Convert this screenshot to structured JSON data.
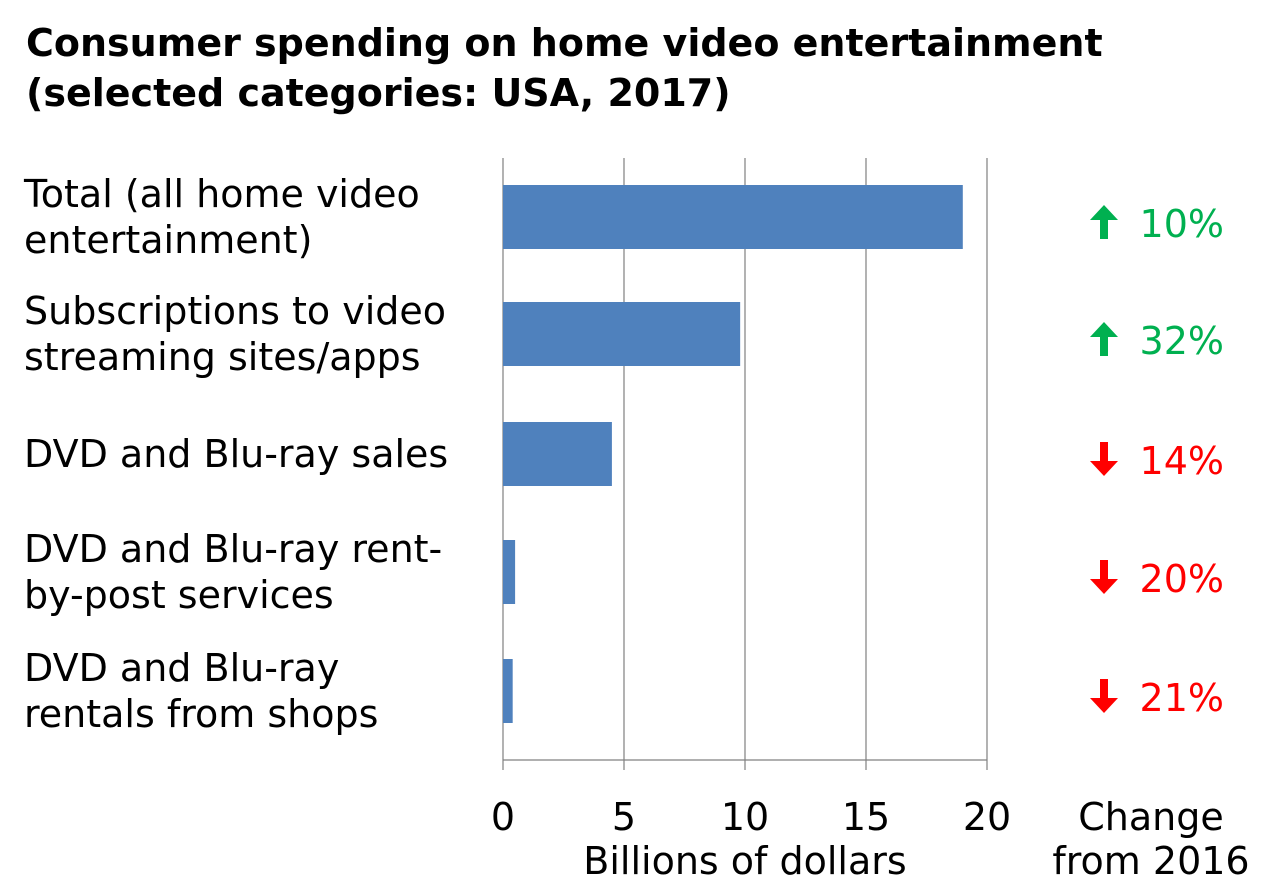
{
  "title_lines": [
    "Consumer spending on home video entertainment",
    "(selected categories: USA, 2017)"
  ],
  "colors": {
    "bar": "#4f81bd",
    "grid": "#808080",
    "up": "#00b050",
    "down": "#ff0000"
  },
  "change_header": [
    "Change",
    "from 2016"
  ],
  "chart_data": {
    "type": "bar",
    "orientation": "horizontal",
    "title": "Consumer spending on home video entertainment (selected categories: USA, 2017)",
    "xlabel": "Billions of dollars",
    "ylabel": "",
    "xlim": [
      0,
      20
    ],
    "xticks": [
      0,
      5,
      10,
      15,
      20
    ],
    "grid": true,
    "categories": [
      [
        "Total (all home video",
        "entertainment)"
      ],
      [
        "Subscriptions to video",
        "streaming sites/apps"
      ],
      [
        "DVD and Blu-ray sales"
      ],
      [
        "DVD and Blu-ray rent-",
        "by-post services"
      ],
      [
        "DVD and Blu-ray",
        "rentals from shops"
      ]
    ],
    "values": [
      19.0,
      9.8,
      4.5,
      0.5,
      0.4
    ],
    "change": [
      {
        "direction": "up",
        "text": "10%"
      },
      {
        "direction": "up",
        "text": "32%"
      },
      {
        "direction": "down",
        "text": "14%"
      },
      {
        "direction": "down",
        "text": "20%"
      },
      {
        "direction": "down",
        "text": "21%"
      }
    ]
  }
}
